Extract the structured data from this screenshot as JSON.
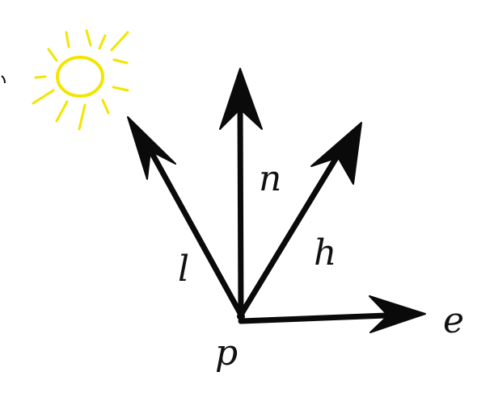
{
  "colors": {
    "background": "#ffffff",
    "stroke": "#0a0a0a",
    "sun": "#f2e600"
  },
  "icons": {
    "sun": "sun-icon"
  },
  "labels": {
    "normal": "n",
    "light": "l",
    "half": "h",
    "eye": "e",
    "point": "p"
  }
}
